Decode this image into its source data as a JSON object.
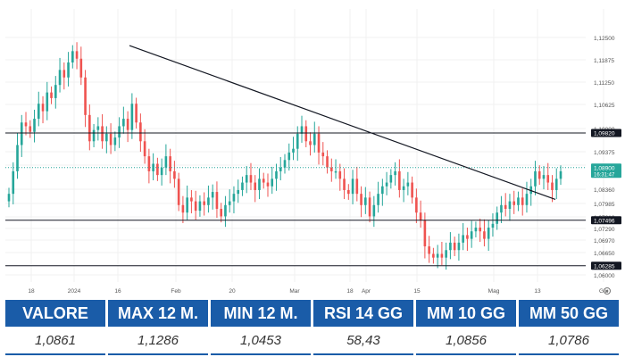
{
  "colors": {
    "up": "#26a69a",
    "down": "#ef5350",
    "header_bg": "#1a5ca8",
    "current_price_line": "#26a69a",
    "level_line": "#131722",
    "trendline": "#131722"
  },
  "chart_data": {
    "type": "candlestick",
    "y_axis": {
      "position": "right",
      "ticks": [
        "1,12500",
        "1,11875",
        "1,11250",
        "1,10625",
        "1,10000",
        "1,09375",
        "1,09055",
        "1,08360",
        "1,07985",
        "1,07610",
        "1,07290",
        "1,06970",
        "1,06650",
        "1,06000"
      ],
      "ylim": [
        1.0585,
        1.1265
      ]
    },
    "x_axis": {
      "ticks": [
        "18",
        "2024",
        "16",
        "Feb",
        "20",
        "Mar",
        "18",
        "Apr",
        "15",
        "Mag",
        "13",
        "Giu"
      ]
    },
    "price_labels": [
      {
        "text": "1,09820",
        "value": 1.0982,
        "style": "dark"
      },
      {
        "text": "1,08900",
        "subtext": "16:31:47",
        "value": 1.089,
        "style": "green"
      },
      {
        "text": "1,07496",
        "value": 1.07496,
        "style": "dark"
      },
      {
        "text": "1,06285",
        "value": 1.06285,
        "style": "dark"
      }
    ],
    "horizontal_levels": [
      1.0982,
      1.07496,
      1.06285
    ],
    "current_price": 1.089,
    "trendline": {
      "from": {
        "date": "2023-12-28",
        "value": 1.1215
      },
      "to": {
        "date": "2024-06-04",
        "value": 1.0805
      }
    },
    "grid": true,
    "closes": [
      1.082,
      1.088,
      1.095,
      1.101,
      1.1,
      1.0985,
      1.102,
      1.106,
      1.104,
      1.109,
      1.1075,
      1.111,
      1.115,
      1.113,
      1.117,
      1.12,
      1.118,
      1.113,
      1.103,
      1.096,
      1.099,
      1.1,
      1.096,
      1.098,
      1.095,
      1.097,
      1.1,
      1.102,
      1.099,
      1.106,
      1.101,
      1.096,
      1.092,
      1.088,
      1.09,
      1.087,
      1.089,
      1.092,
      1.088,
      1.086,
      1.079,
      1.077,
      1.081,
      1.08,
      1.0775,
      1.08,
      1.079,
      1.081,
      1.0825,
      1.078,
      1.076,
      1.079,
      1.08,
      1.082,
      1.083,
      1.085,
      1.087,
      1.085,
      1.083,
      1.086,
      1.085,
      1.084,
      1.086,
      1.088,
      1.089,
      1.091,
      1.093,
      1.094,
      1.098,
      1.1,
      1.096,
      1.095,
      1.098,
      1.093,
      1.092,
      1.089,
      1.088,
      1.088,
      1.086,
      1.083,
      1.082,
      1.086,
      1.082,
      1.079,
      1.081,
      1.076,
      1.079,
      1.082,
      1.084,
      1.085,
      1.087,
      1.088,
      1.083,
      1.084,
      1.085,
      1.081,
      1.077,
      1.075,
      1.068,
      1.066,
      1.065,
      1.066,
      1.065,
      1.067,
      1.069,
      1.067,
      1.069,
      1.071,
      1.07,
      1.072,
      1.073,
      1.072,
      1.07,
      1.073,
      1.074,
      1.077,
      1.079,
      1.078,
      1.08,
      1.079,
      1.081,
      1.079,
      1.082,
      1.084,
      1.088,
      1.086,
      1.087,
      1.085,
      1.083,
      1.086,
      1.088
    ]
  },
  "stats": [
    {
      "label": "VALORE",
      "value": "1,0861"
    },
    {
      "label": "MAX 12 M.",
      "value": "1,1286"
    },
    {
      "label": "MIN 12 M.",
      "value": "1,0453"
    },
    {
      "label": "RSI 14 GG",
      "value": "58,43"
    },
    {
      "label": "MM 10 GG",
      "value": "1,0856"
    },
    {
      "label": "MM 50 GG",
      "value": "1,0786"
    }
  ]
}
